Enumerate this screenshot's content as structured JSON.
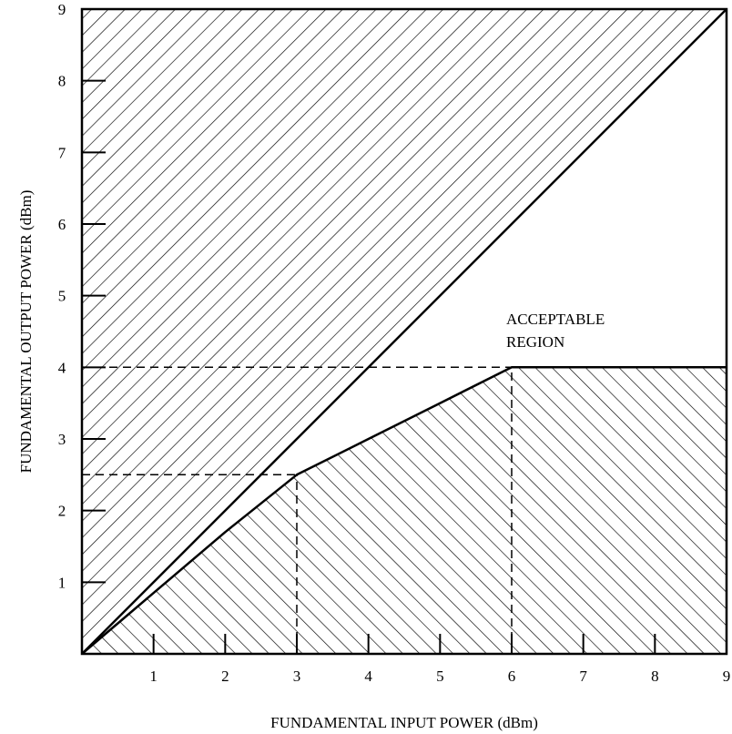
{
  "chart_data": {
    "type": "line",
    "title": "",
    "xlabel": "FUNDAMENTAL INPUT POWER (dBm)",
    "ylabel": "FUNDAMENTAL OUTPUT POWER (dBm)",
    "xlim": [
      0,
      9
    ],
    "ylim": [
      0,
      9
    ],
    "xticks": [
      1,
      2,
      3,
      4,
      5,
      6,
      7,
      8,
      9
    ],
    "yticks": [
      1,
      2,
      3,
      4,
      5,
      6,
      7,
      8,
      9
    ],
    "grid": false,
    "series": [
      {
        "values": [
          [
            0,
            0
          ],
          [
            9,
            9
          ]
        ]
      },
      {
        "values": [
          [
            0,
            0
          ],
          [
            1,
            0.85
          ],
          [
            2,
            1.7
          ],
          [
            3,
            2.5
          ],
          [
            4,
            3.0
          ],
          [
            5,
            3.5
          ],
          [
            6,
            4.0
          ],
          [
            9,
            4.0
          ]
        ]
      }
    ],
    "reference_lines": [
      {
        "values": [
          [
            0,
            4
          ],
          [
            6,
            4
          ]
        ]
      },
      {
        "values": [
          [
            6,
            0
          ],
          [
            6,
            4
          ]
        ]
      },
      {
        "values": [
          [
            0,
            2.5
          ],
          [
            3,
            2.5
          ]
        ]
      },
      {
        "values": [
          [
            3,
            0
          ],
          [
            3,
            2.5
          ]
        ]
      }
    ],
    "shaded_regions": [
      {
        "direction": "descending-right",
        "bounds": "above the linear line"
      },
      {
        "direction": "ascending-right",
        "bounds": "below the compression curve"
      }
    ],
    "annotations": [
      {
        "lines": [
          "ACCEPTABLE",
          "REGION"
        ],
        "x": 6.0,
        "y": 4.6
      }
    ]
  }
}
